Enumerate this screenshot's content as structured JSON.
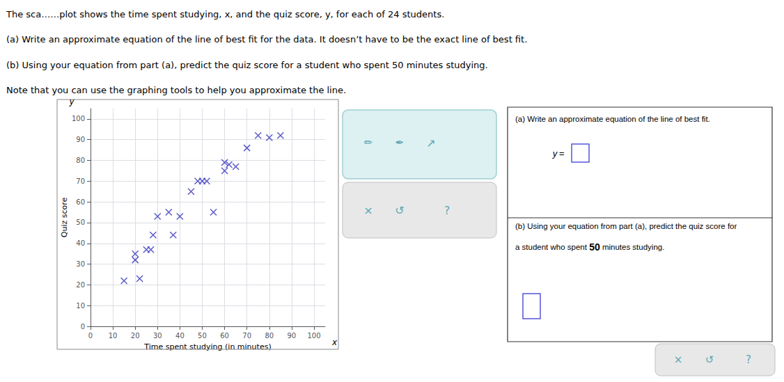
{
  "chart_data": {
    "type": "scatter",
    "x": [
      15,
      20,
      20,
      22,
      25,
      27,
      28,
      30,
      35,
      37,
      40,
      45,
      48,
      50,
      52,
      55,
      60,
      60,
      62,
      65,
      70,
      75,
      80,
      85
    ],
    "values": [
      22,
      32,
      35,
      23,
      37,
      37,
      44,
      53,
      55,
      44,
      53,
      65,
      70,
      70,
      70,
      55,
      75,
      79,
      78,
      77,
      86,
      92,
      91,
      92
    ],
    "color": "#3333bb",
    "marker": "x",
    "xlabel": "Time spent studying (in minutes)",
    "ylabel": "Quiz score",
    "xlim": [
      0,
      105
    ],
    "ylim": [
      0,
      105
    ],
    "xticks": [
      0,
      10,
      20,
      30,
      40,
      50,
      60,
      70,
      80,
      90,
      100
    ],
    "yticks": [
      0,
      10,
      20,
      30,
      40,
      50,
      60,
      70,
      80,
      90,
      100
    ],
    "grid": true,
    "annotations": [
      "The sca……plot shows the time spent studying, x, and the quiz score, y, for each of 24 students.",
      "(a) Write an approximate equation of the line of best fit for the data. It doesn’t have to be the exact line of best fit.",
      "(b) Using your equation from part (a), predict the quiz score for a student who spent 50 minutes studying.",
      "Note that you can use the graphing tools to help you approximate the line.",
      "y",
      "x",
      "✏",
      "✒",
      "↗",
      "×",
      "↺",
      "?",
      "(a) Write an approximate equation of the line of best fit.",
      "y = ",
      "(b) Using your equation from part (a), predict the quiz score for",
      "a student who spent ",
      "50",
      " minutes studying.",
      "×",
      "↺",
      "?"
    ]
  }
}
